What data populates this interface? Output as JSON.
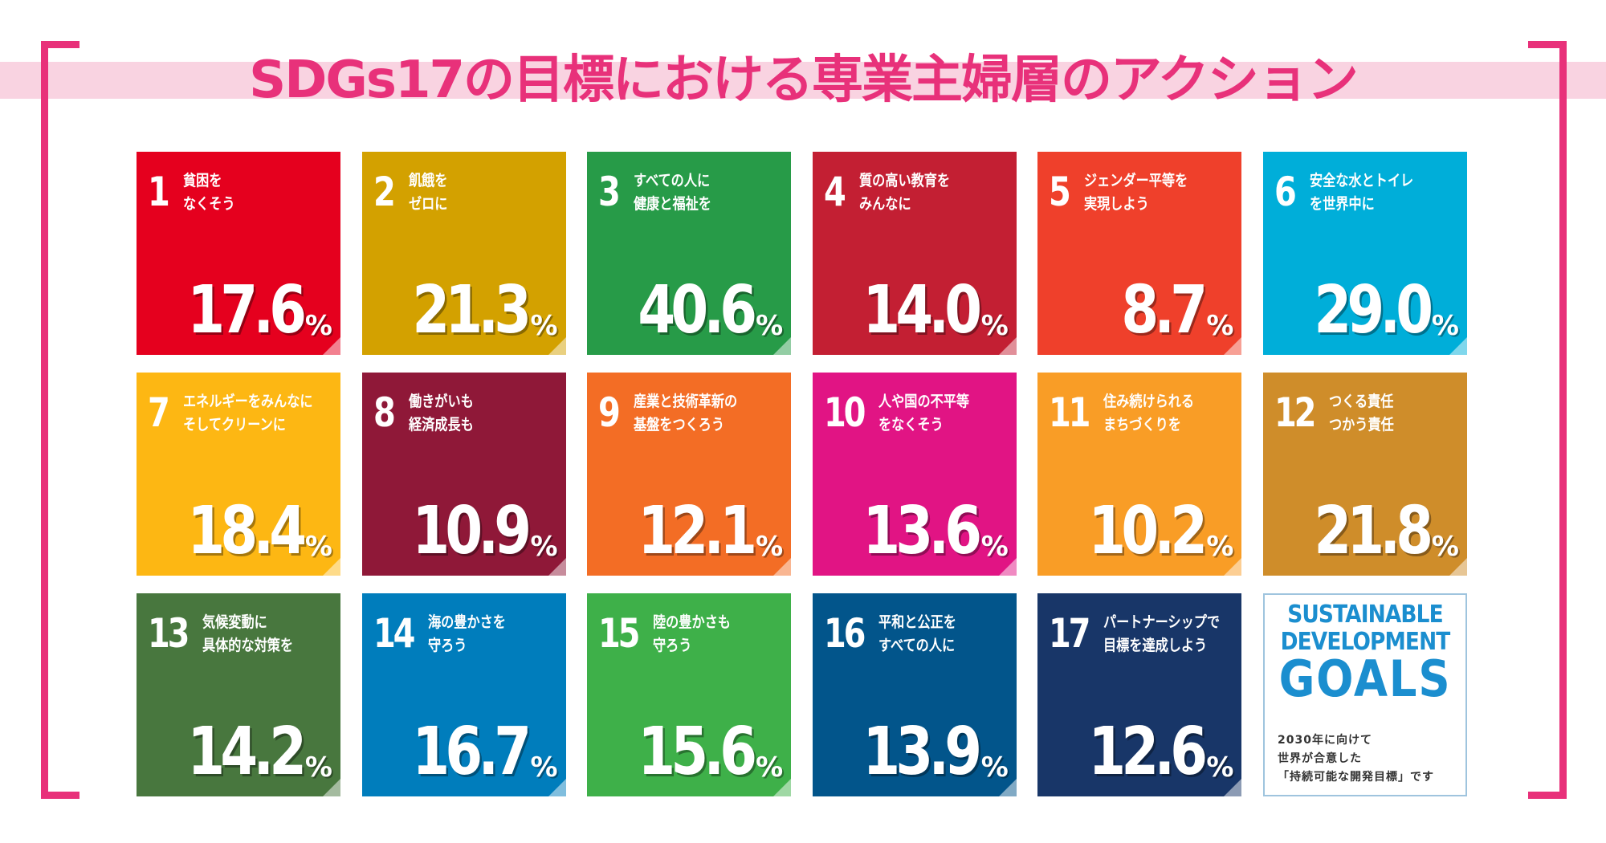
{
  "title": "SDGs17の目標における専業主婦層のアクション",
  "unit": "%",
  "tiles": [
    {
      "number": "1",
      "label": [
        "貧困を",
        "なくそう"
      ],
      "value": "17.6",
      "color": "#e5001e"
    },
    {
      "number": "2",
      "label": [
        "飢餓を",
        "ゼロに"
      ],
      "value": "21.3",
      "color": "#d3a100"
    },
    {
      "number": "3",
      "label": [
        "すべての人に",
        "健康と福祉を"
      ],
      "value": "40.6",
      "color": "#279b48"
    },
    {
      "number": "4",
      "label": [
        "質の高い教育を",
        "みんなに"
      ],
      "value": "14.0",
      "color": "#c31f33"
    },
    {
      "number": "5",
      "label": [
        "ジェンダー平等を",
        "実現しよう"
      ],
      "value": "8.7",
      "color": "#ef402b"
    },
    {
      "number": "6",
      "label": [
        "安全な水とトイレ",
        "を世界中に"
      ],
      "value": "29.0",
      "color": "#00aed9"
    },
    {
      "number": "7",
      "label": [
        "エネルギーをみんなに",
        "そしてクリーンに"
      ],
      "value": "18.4",
      "color": "#fdb713"
    },
    {
      "number": "8",
      "label": [
        "働きがいも",
        "経済成長も"
      ],
      "value": "10.9",
      "color": "#8f1838"
    },
    {
      "number": "9",
      "label": [
        "産業と技術革新の",
        "基盤をつくろう"
      ],
      "value": "12.1",
      "color": "#f36d25"
    },
    {
      "number": "10",
      "label": [
        "人や国の不平等",
        "をなくそう"
      ],
      "value": "13.6",
      "color": "#e11484"
    },
    {
      "number": "11",
      "label": [
        "住み続けられる",
        "まちづくりを"
      ],
      "value": "10.2",
      "color": "#f99d26"
    },
    {
      "number": "12",
      "label": [
        "つくる責任",
        "つかう責任"
      ],
      "value": "21.8",
      "color": "#cf8d2a"
    },
    {
      "number": "13",
      "label": [
        "気候変動に",
        "具体的な対策を"
      ],
      "value": "14.2",
      "color": "#48773e"
    },
    {
      "number": "14",
      "label": [
        "海の豊かさを",
        "守ろう"
      ],
      "value": "16.7",
      "color": "#007dbc"
    },
    {
      "number": "15",
      "label": [
        "陸の豊かさも",
        "守ろう"
      ],
      "value": "15.6",
      "color": "#3eb049"
    },
    {
      "number": "16",
      "label": [
        "平和と公正を",
        "すべての人に"
      ],
      "value": "13.9",
      "color": "#02558b"
    },
    {
      "number": "17",
      "label": [
        "パートナーシップで",
        "目標を達成しよう"
      ],
      "value": "12.6",
      "color": "#183668"
    }
  ],
  "logo": {
    "heading": [
      "SUSTAINABLE",
      "DEVELOPMENT",
      "GOALS"
    ],
    "caption": [
      "2030年に向けて",
      "世界が合意した",
      "「持続可能な開発目標」です"
    ]
  }
}
